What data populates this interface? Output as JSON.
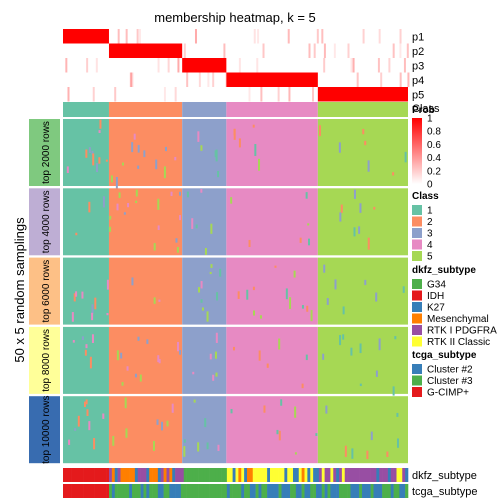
{
  "chart_data": {
    "type": "heatmap",
    "title": "membership heatmap, k = 5",
    "ylabel": "50 x 5 random samplings",
    "membership_rows": [
      "p1",
      "p2",
      "p3",
      "p4",
      "p5"
    ],
    "class_track_label": "Class",
    "sampling_groups": [
      "top 2000 rows",
      "top 4000 rows",
      "top 6000 rows",
      "top 8000 rows",
      "top 10000 rows"
    ],
    "sampling_group_colors": [
      "#7FC97F",
      "#BEAED4",
      "#FDC086",
      "#FFFF99",
      "#386CB0"
    ],
    "bottom_annotations": [
      "dkfz_subtype",
      "tcga_subtype"
    ],
    "classes": [
      {
        "label": "1",
        "color": "#66C2A5",
        "share": 0.103
      },
      {
        "label": "2",
        "color": "#FC8D62",
        "share": 0.164
      },
      {
        "label": "3",
        "color": "#8DA0CB",
        "share": 0.099
      },
      {
        "label": "4",
        "color": "#E78AC3",
        "share": 0.205
      },
      {
        "label": "5",
        "color": "#A6D854",
        "share": 0.202
      }
    ],
    "membership_legend": {
      "title": "Prob",
      "ticks": [
        "1",
        "0.8",
        "0.6",
        "0.4",
        "0.2",
        "0"
      ],
      "low_color": "#FFFFFF",
      "high_color": "#FF0000"
    },
    "class_legend": {
      "title": "Class",
      "items": [
        {
          "label": "1",
          "color": "#66C2A5"
        },
        {
          "label": "2",
          "color": "#FC8D62"
        },
        {
          "label": "3",
          "color": "#8DA0CB"
        },
        {
          "label": "4",
          "color": "#E78AC3"
        },
        {
          "label": "5",
          "color": "#A6D854"
        }
      ]
    },
    "dkfz_legend": {
      "title": "dkfz_subtype",
      "items": [
        {
          "label": "G34",
          "color": "#4DAF4A"
        },
        {
          "label": "IDH",
          "color": "#E41A1C"
        },
        {
          "label": "K27",
          "color": "#377EB8"
        },
        {
          "label": "Mesenchymal",
          "color": "#FF7F00"
        },
        {
          "label": "RTK I PDGFRA",
          "color": "#984EA3"
        },
        {
          "label": "RTK II Classic",
          "color": "#FFFF33"
        }
      ]
    },
    "tcga_legend": {
      "title": "tcga_subtype",
      "items": [
        {
          "label": "Cluster #2",
          "color": "#377EB8"
        },
        {
          "label": "Cluster #3",
          "color": "#4DAF4A"
        },
        {
          "label": "G-CIMP+",
          "color": "#E41A1C"
        }
      ]
    }
  }
}
